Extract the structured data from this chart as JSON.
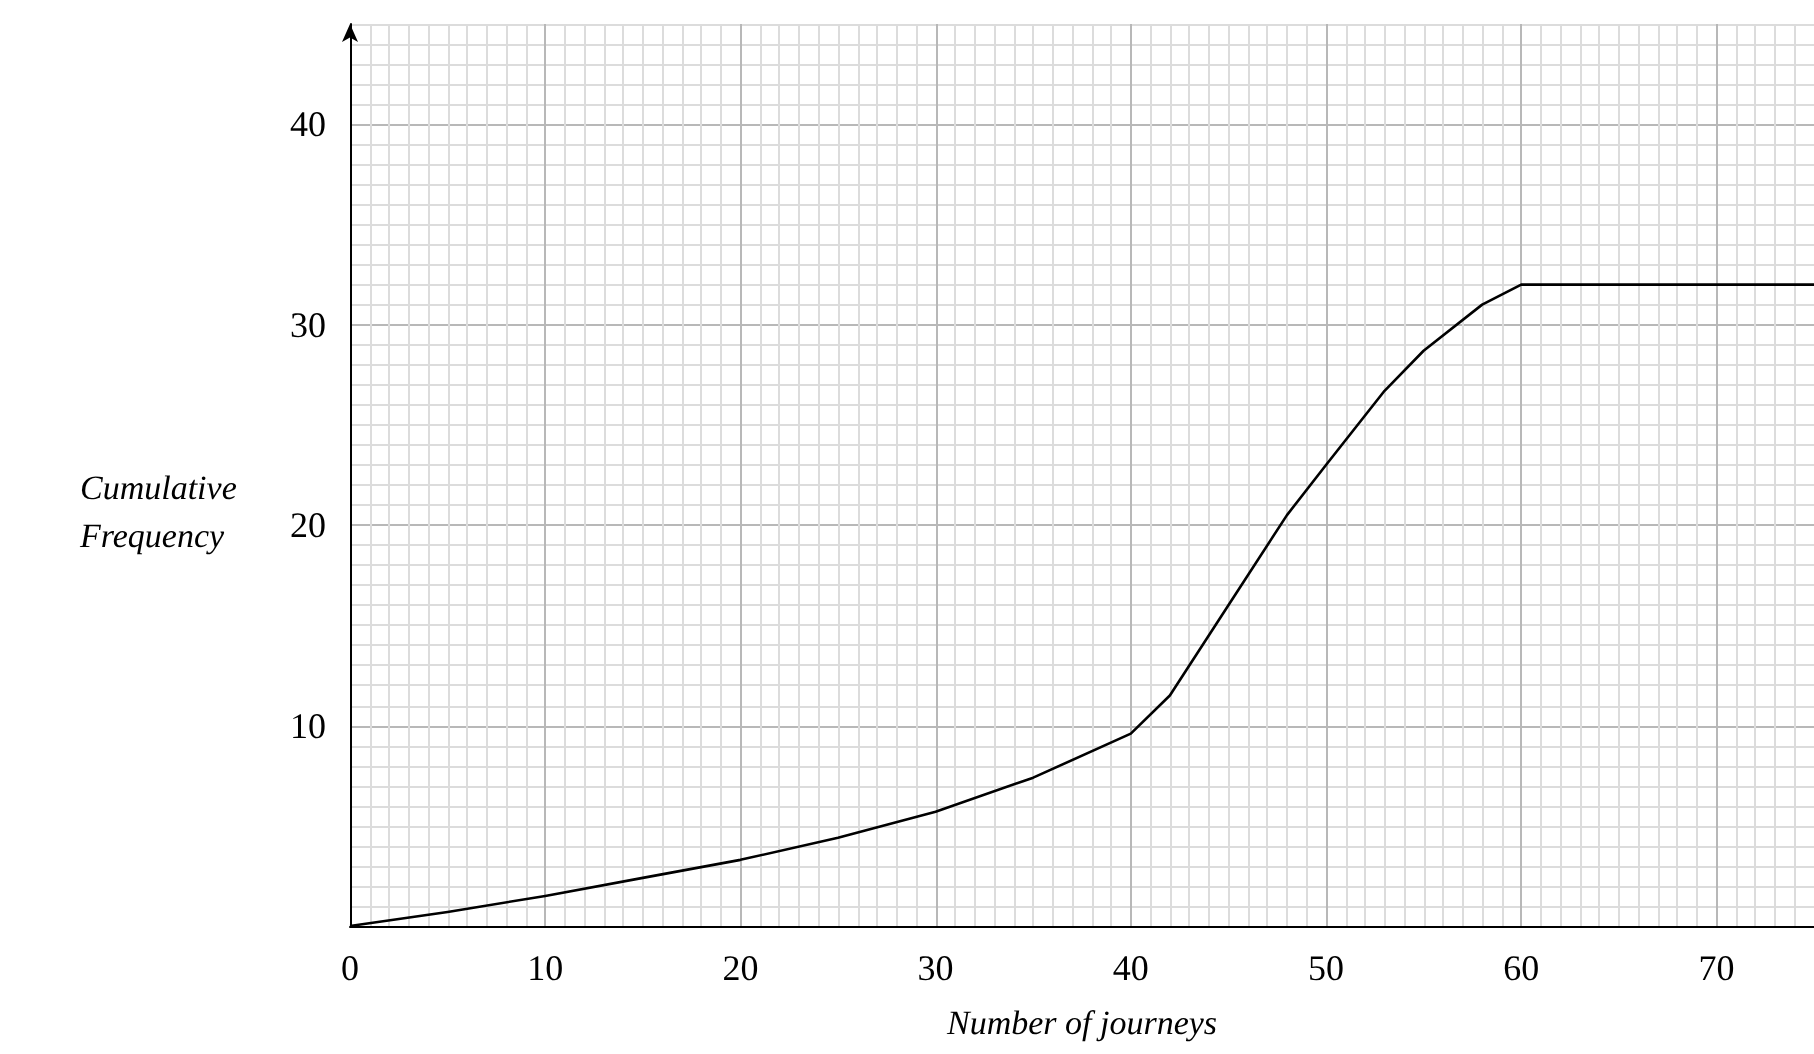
{
  "chart_data": {
    "type": "line",
    "xlabel": "Number of journeys",
    "ylabel": "Cumulative Frequency",
    "x": [
      0,
      5,
      10,
      15,
      20,
      25,
      30,
      35,
      40,
      42,
      45,
      48,
      50,
      53,
      55,
      58,
      60,
      75
    ],
    "series": [
      {
        "color": "#000000",
        "values": [
          0,
          0.7,
          1.5,
          2.4,
          3.3,
          4.4,
          5.7,
          7.4,
          9.6,
          11.5,
          16,
          20.5,
          23,
          26.7,
          28.7,
          31,
          32,
          32
        ]
      }
    ],
    "xlim": [
      0,
      75
    ],
    "ylim": [
      0,
      45
    ],
    "xticks": [
      0,
      10,
      20,
      30,
      40,
      50,
      60,
      70
    ],
    "yticks": [
      10,
      20,
      30,
      40
    ],
    "grid": true,
    "marker": "none",
    "line_style": "solid"
  }
}
